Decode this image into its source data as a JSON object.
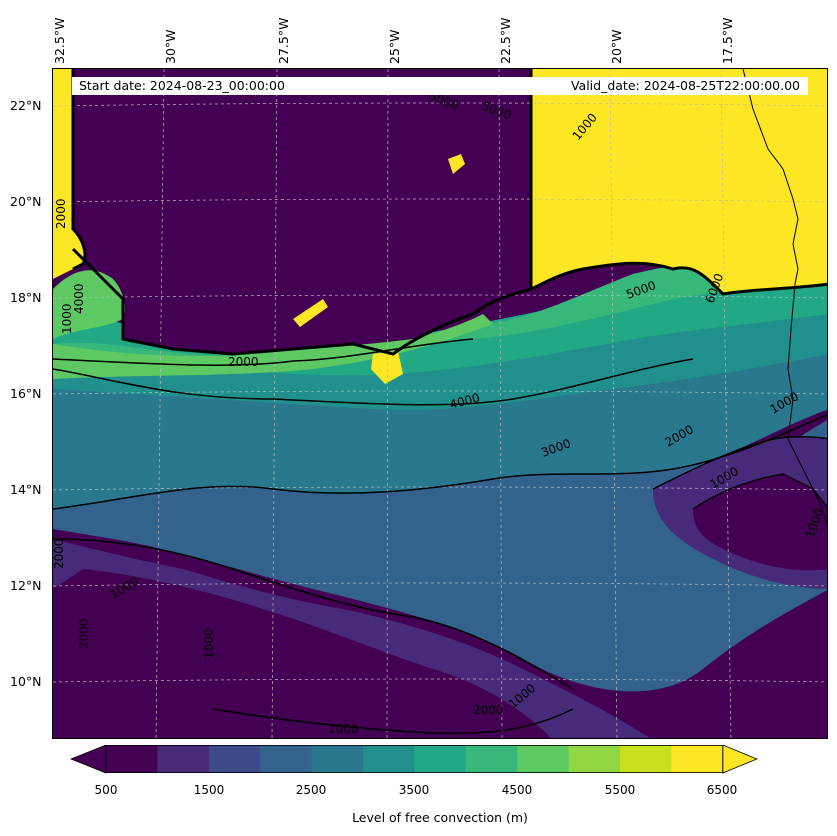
{
  "map": {
    "lon_labels": [
      "32.5°W",
      "30°W",
      "27.5°W",
      "25°W",
      "22.5°W",
      "20°W",
      "17.5°W"
    ],
    "lat_labels": [
      "22°N",
      "20°N",
      "18°N",
      "16°N",
      "14°N",
      "12°N",
      "10°N"
    ],
    "start_date": "Start date: 2024-08-23_00:00:00",
    "valid_date": "Valid_date: 2024-08-25T22:00:00.00",
    "contour_labels": [
      "5000",
      "5000",
      "1000",
      "2000",
      "1000",
      "6000",
      "5000",
      "4000",
      "3000",
      "2000",
      "1000",
      "1000",
      "2000",
      "1000",
      "2000",
      "1000",
      "4000",
      "2000",
      "1000",
      "1000",
      "2000",
      "1000"
    ]
  },
  "colorbar": {
    "title": "Level of free convection (m)",
    "tick_labels": [
      "500",
      "1500",
      "2500",
      "3500",
      "4500",
      "5500",
      "6500"
    ],
    "colors": [
      "#440154",
      "#472a7a",
      "#3e4a89",
      "#33638d",
      "#2a788e",
      "#21908d",
      "#22a884",
      "#37b779",
      "#5ec962",
      "#90d743",
      "#c8e020",
      "#fde725"
    ]
  }
}
